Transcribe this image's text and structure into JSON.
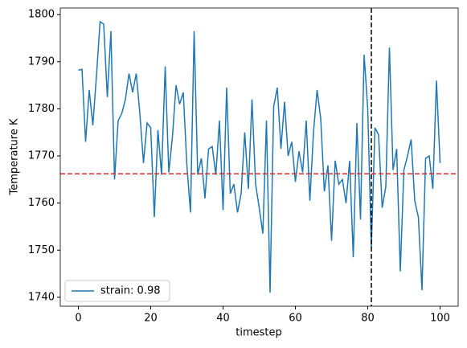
{
  "chart_data": {
    "type": "line",
    "xlabel": "timestep",
    "ylabel": "Temperature K",
    "x": [
      0,
      1,
      2,
      3,
      4,
      5,
      6,
      7,
      8,
      9,
      10,
      11,
      12,
      13,
      14,
      15,
      16,
      17,
      18,
      19,
      20,
      21,
      22,
      23,
      24,
      25,
      26,
      27,
      28,
      29,
      30,
      31,
      32,
      33,
      34,
      35,
      36,
      37,
      38,
      39,
      40,
      41,
      42,
      43,
      44,
      45,
      46,
      47,
      48,
      49,
      50,
      51,
      52,
      53,
      54,
      55,
      56,
      57,
      58,
      59,
      60,
      61,
      62,
      63,
      64,
      65,
      66,
      67,
      68,
      69,
      70,
      71,
      72,
      73,
      74,
      75,
      76,
      77,
      78,
      79,
      80,
      81,
      82,
      83,
      84,
      85,
      86,
      87,
      88,
      89,
      90,
      91,
      92,
      93,
      94,
      95,
      96,
      97,
      98,
      99,
      100
    ],
    "series": [
      {
        "name": "strain: 0.98",
        "color": "#1f77b4",
        "values": [
          1788.2,
          1788.4,
          1773,
          1784,
          1776.5,
          1787,
          1798.5,
          1798,
          1782.5,
          1796.5,
          1765,
          1777.5,
          1779,
          1782,
          1787.5,
          1783.5,
          1787.5,
          1779,
          1768.5,
          1777,
          1776,
          1757,
          1775.5,
          1766,
          1789,
          1766.5,
          1774,
          1785,
          1781,
          1783.5,
          1768,
          1758,
          1796.5,
          1766,
          1769.5,
          1761,
          1771.5,
          1772,
          1766,
          1777.5,
          1758.5,
          1784.5,
          1762,
          1764,
          1758,
          1762,
          1775,
          1763,
          1782,
          1764,
          1759,
          1753.5,
          1777.5,
          1741,
          1780.5,
          1784.5,
          1771.5,
          1781.5,
          1770,
          1773,
          1764.5,
          1771,
          1766.5,
          1777.5,
          1760.5,
          1775,
          1784,
          1778,
          1762.5,
          1768,
          1752,
          1769,
          1764,
          1765,
          1760,
          1769,
          1748.5,
          1777,
          1756.5,
          1791.5,
          1780,
          1750.5,
          1776,
          1774.5,
          1759,
          1763.5,
          1793,
          1767,
          1771.5,
          1745.5,
          1767,
          1770,
          1773.5,
          1760.5,
          1757,
          1741.5,
          1769.5,
          1770,
          1763,
          1786,
          1768.5
        ]
      }
    ],
    "hline": {
      "value": 1766.2,
      "color": "#d62728"
    },
    "vline": {
      "value": 81,
      "color": "#000000"
    },
    "xlim": [
      -5,
      105
    ],
    "xticks": [
      0,
      20,
      40,
      60,
      80,
      100
    ],
    "ylim": [
      1738.1,
      1801.4
    ],
    "yticks": [
      1740,
      1750,
      1760,
      1770,
      1780,
      1790,
      1800
    ],
    "legend": "lower left"
  }
}
